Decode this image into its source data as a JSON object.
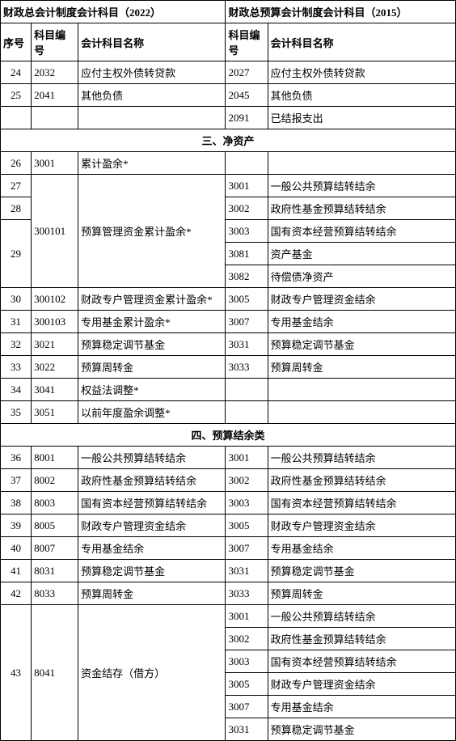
{
  "header": {
    "left": "财政总会计制度会计科目（2022）",
    "right": "财政总预算会计制度会计科目（2015）",
    "seq": "序号",
    "code": "科目编号",
    "name": "会计科目名称"
  },
  "sections": {
    "s3": "三、净资产",
    "s4": "四、预算结余类"
  },
  "pre_rows": [
    {
      "seq": "24",
      "c1": "2032",
      "n1": "应付主权外债转贷款",
      "c2": "2027",
      "n2": "应付主权外债转贷款"
    },
    {
      "seq": "25",
      "c1": "2041",
      "n1": "其他负债",
      "c2": "2045",
      "n2": "其他负债"
    },
    {
      "seq": "",
      "c1": "",
      "n1": "",
      "c2": "2091",
      "n2": "已结报支出"
    }
  ],
  "net_assets": {
    "r26": {
      "seq": "26",
      "c1": "3001",
      "n1": "累计盈余*"
    },
    "r27": {
      "seq": "27",
      "c2": "3001",
      "n2": "一般公共预算结转结余"
    },
    "r28": {
      "seq": "28",
      "c2": "3002",
      "n2": "政府性基金预算结转结余"
    },
    "r28b": {
      "c1": "300101",
      "n1": "预算管理资金累计盈余*"
    },
    "r29a": {
      "seq": "29",
      "c2": "3003",
      "n2": "国有资本经营预算结转结余"
    },
    "r29b": {
      "c2": "3081",
      "n2": "资产基金"
    },
    "r29c": {
      "c2": "3082",
      "n2": "待偿债净资产"
    },
    "r30": {
      "seq": "30",
      "c1": "300102",
      "n1": "财政专户管理资金累计盈余*",
      "c2": "3005",
      "n2": "财政专户管理资金结余"
    },
    "r31": {
      "seq": "31",
      "c1": "300103",
      "n1": "专用基金累计盈余*",
      "c2": "3007",
      "n2": "专用基金结余"
    },
    "r32": {
      "seq": "32",
      "c1": "3021",
      "n1": "预算稳定调节基金",
      "c2": "3031",
      "n2": "预算稳定调节基金"
    },
    "r33": {
      "seq": "33",
      "c1": "3022",
      "n1": "预算周转金",
      "c2": "3033",
      "n2": "预算周转金"
    },
    "r34": {
      "seq": "34",
      "c1": "3041",
      "n1": "权益法调整*"
    },
    "r35": {
      "seq": "35",
      "c1": "3051",
      "n1": "以前年度盈余调整*"
    }
  },
  "budget_balance": [
    {
      "seq": "36",
      "c1": "8001",
      "n1": "一般公共预算结转结余",
      "c2": "3001",
      "n2": "一般公共预算结转结余"
    },
    {
      "seq": "37",
      "c1": "8002",
      "n1": "政府性基金预算结转结余",
      "c2": "3002",
      "n2": "政府性基金预算结转结余"
    },
    {
      "seq": "38",
      "c1": "8003",
      "n1": "国有资本经营预算结转结余",
      "c2": "3003",
      "n2": "国有资本经营预算结转结余"
    },
    {
      "seq": "39",
      "c1": "8005",
      "n1": "财政专户管理资金结余",
      "c2": "3005",
      "n2": "财政专户管理资金结余"
    },
    {
      "seq": "40",
      "c1": "8007",
      "n1": "专用基金结余",
      "c2": "3007",
      "n2": "专用基金结余"
    },
    {
      "seq": "41",
      "c1": "8031",
      "n1": "预算稳定调节基金",
      "c2": "3031",
      "n2": "预算稳定调节基金"
    },
    {
      "seq": "42",
      "c1": "8033",
      "n1": "预算周转金",
      "c2": "3033",
      "n2": "预算周转金"
    }
  ],
  "r43": {
    "seq": "43",
    "c1": "8041",
    "n1": "资金结存（借方）",
    "subs": [
      {
        "c2": "3001",
        "n2": "一般公共预算结转结余"
      },
      {
        "c2": "3002",
        "n2": "政府性基金预算结转结余"
      },
      {
        "c2": "3003",
        "n2": "国有资本经营预算结转结余"
      },
      {
        "c2": "3005",
        "n2": "财政专户管理资金结余"
      },
      {
        "c2": "3007",
        "n2": "专用基金结余"
      },
      {
        "c2": "3031",
        "n2": "预算稳定调节基金"
      }
    ]
  }
}
